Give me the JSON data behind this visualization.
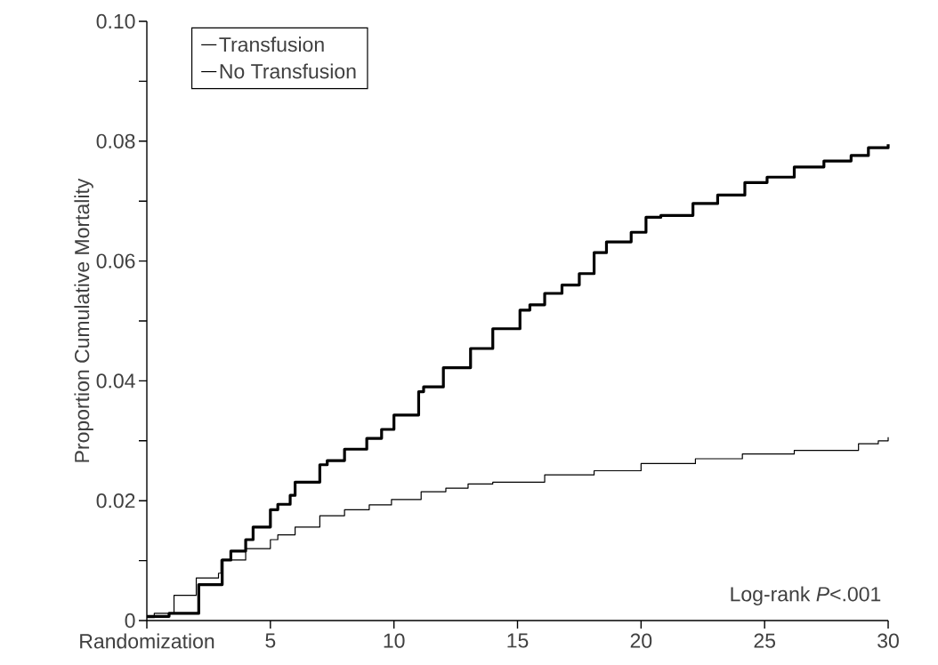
{
  "chart_data": {
    "type": "step",
    "ylabel": "Proportion Cumulative Mortality",
    "annotations": [
      "Log-rank *P*<.001"
    ],
    "xlim": [
      0,
      30
    ],
    "xticks": [
      {
        "value": 0,
        "label": "Randomization"
      },
      5,
      10,
      15,
      20,
      25,
      30
    ],
    "ylim": [
      0,
      0.1
    ],
    "yticks": [
      0,
      {
        "value": 0.01,
        "label": null
      },
      0.02,
      {
        "value": 0.03,
        "label": null
      },
      0.04,
      {
        "value": 0.05,
        "label": null
      },
      0.06,
      {
        "value": 0.07,
        "label": null
      },
      0.08,
      {
        "value": 0.09,
        "label": null
      },
      {
        "value": 0.1,
        "label": "0.10"
      }
    ],
    "legend": "top left",
    "grid": false,
    "marker": "none",
    "series": [
      {
        "name": "Transfusion",
        "color": "#000000",
        "x": [
          0,
          0.9,
          2.1,
          3.05,
          3.4,
          4.0,
          4.3,
          5.0,
          5.3,
          5.8,
          6.0,
          7.0,
          7.3,
          8.0,
          8.9,
          9.5,
          10.0,
          11.0,
          11.2,
          12.0,
          13.1,
          14.0,
          15.1,
          15.5,
          16.1,
          16.8,
          17.5,
          18.1,
          18.6,
          19.6,
          20.2,
          20.8,
          22.1,
          23.1,
          24.2,
          25.1,
          26.2,
          27.4,
          28.5,
          29.2,
          30
        ],
        "values": [
          0.0007,
          0.0012,
          0.006,
          0.0101,
          0.0116,
          0.0135,
          0.0156,
          0.0185,
          0.0194,
          0.0209,
          0.0231,
          0.026,
          0.0267,
          0.0286,
          0.0304,
          0.0319,
          0.0343,
          0.0382,
          0.039,
          0.0422,
          0.0454,
          0.0487,
          0.0518,
          0.0527,
          0.0546,
          0.056,
          0.0579,
          0.0614,
          0.0632,
          0.0648,
          0.0673,
          0.0676,
          0.0696,
          0.071,
          0.0731,
          0.074,
          0.0757,
          0.0767,
          0.0776,
          0.0789,
          0.0795
        ]
      },
      {
        "name": "No Transfusion",
        "color": "#000000",
        "x": [
          0,
          0.3,
          1.1,
          2.0,
          2.9,
          3.0,
          4.0,
          5.0,
          5.3,
          6.0,
          7.0,
          8.0,
          9.0,
          9.9,
          11.1,
          12.1,
          13.0,
          14.0,
          16.1,
          18.1,
          20.0,
          22.2,
          24.1,
          26.2,
          28.8,
          29.6,
          30
        ],
        "values": [
          0.0005,
          0.0012,
          0.0042,
          0.0071,
          0.0079,
          0.0101,
          0.012,
          0.0135,
          0.0143,
          0.0156,
          0.0175,
          0.0185,
          0.0193,
          0.0202,
          0.0215,
          0.0221,
          0.0228,
          0.0231,
          0.0243,
          0.025,
          0.0262,
          0.027,
          0.0278,
          0.0284,
          0.0295,
          0.03,
          0.0306
        ]
      }
    ]
  }
}
